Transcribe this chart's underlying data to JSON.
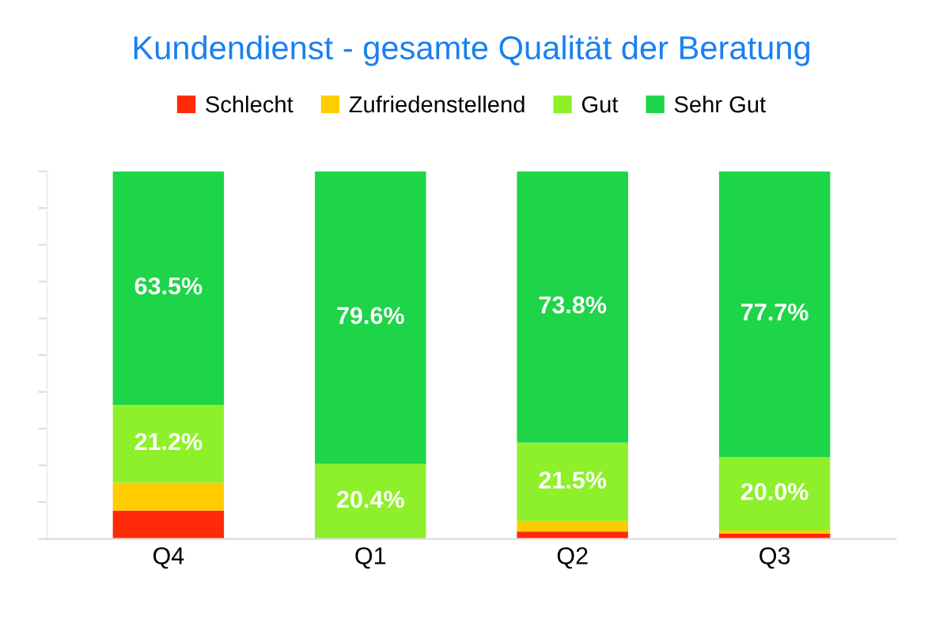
{
  "chart_data": {
    "type": "bar",
    "stacked": true,
    "title": "Kundendienst - gesamte Qualität der Beratung",
    "categories": [
      "Q4",
      "Q1",
      "Q2",
      "Q3"
    ],
    "series": [
      {
        "name": "Schlecht",
        "color": "#ff2a0a",
        "values": [
          7.7,
          0,
          2.0,
          1.5
        ],
        "value_labels": [
          null,
          null,
          null,
          null
        ]
      },
      {
        "name": "Zufriedenstellend",
        "color": "#ffcc00",
        "values": [
          7.6,
          0,
          2.7,
          0.8
        ],
        "value_labels": [
          null,
          null,
          null,
          null
        ]
      },
      {
        "name": "Gut",
        "color": "#8ef02a",
        "values": [
          21.2,
          20.4,
          21.5,
          20.0
        ],
        "value_labels": [
          "21.2%",
          "20.4%",
          "21.5%",
          "20.0%"
        ]
      },
      {
        "name": "Sehr Gut",
        "color": "#1ed448",
        "values": [
          63.5,
          79.6,
          73.8,
          77.7
        ],
        "value_labels": [
          "63.5%",
          "79.6%",
          "73.8%",
          "77.7%"
        ]
      }
    ],
    "ylim": [
      0,
      100
    ],
    "yticks": [
      {
        "value": 0,
        "label": null
      },
      {
        "value": 10,
        "label": null
      },
      {
        "value": 20,
        "label": null
      },
      {
        "value": 30,
        "label": null
      },
      {
        "value": 40,
        "label": null
      },
      {
        "value": 50,
        "label": null
      },
      {
        "value": 60,
        "label": null
      },
      {
        "value": 70,
        "label": null
      },
      {
        "value": 80,
        "label": null
      },
      {
        "value": 90,
        "label": null
      },
      {
        "value": 100,
        "label": null
      }
    ],
    "tick_labels": "x",
    "grid": false,
    "legend": "top"
  }
}
